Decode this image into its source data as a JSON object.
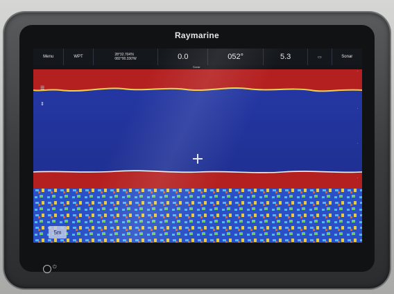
{
  "device": {
    "brand": "Raymarine"
  },
  "databar": {
    "menu_label": "Menu",
    "waypoint_label": "WPT",
    "position": {
      "lat": "28°32.704'N",
      "lon": "082°00.330'W"
    },
    "depth_value": "0.0",
    "heading_value": "052°",
    "speed_value": "5.3",
    "mode_label": "Sonar",
    "under_label": "Sonar"
  },
  "overlay": {
    "range_label": "5m"
  },
  "controls": {
    "power_label": "⏻"
  },
  "colors": {
    "water": "#1f2f8c",
    "surface_band": "#b41f1f",
    "bottom_band": "#b41f1f",
    "return_yellow": "#f1d34a",
    "return_cyan": "#4cc8e8",
    "return_green": "#6fd36a"
  }
}
